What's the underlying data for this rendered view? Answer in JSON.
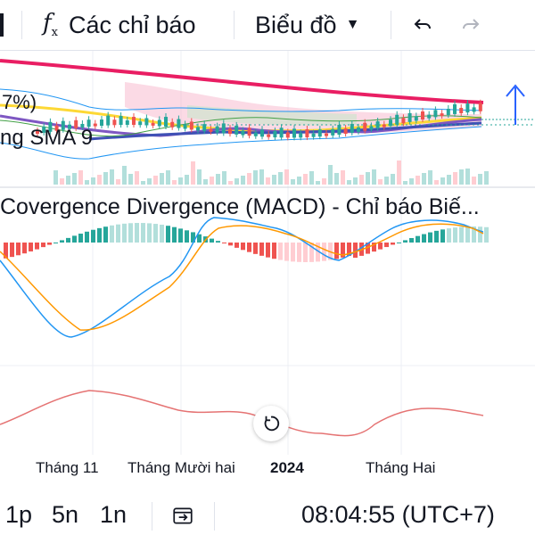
{
  "toolbar": {
    "indicators_label": "Các chỉ báo",
    "chart_label": "Biểu đồ",
    "indicators_icon": "function-icon",
    "chart_icon": "chevron-down-icon",
    "undo_icon": "undo-icon",
    "redo_icon": "redo-icon"
  },
  "panes": {
    "main_legend_fragment": "ng SMA 9",
    "percent_fragment": "7%)",
    "macd_title": "Covergence Divergence (MACD) - Chỉ báo Biế...",
    "reset_icon": "reset-icon"
  },
  "x_axis": {
    "labels": [
      "Tháng 11",
      "Tháng Mười hai",
      "2024",
      "Tháng Hai"
    ]
  },
  "bottom_bar": {
    "intervals": [
      "1p",
      "5n",
      "1n"
    ],
    "goto_icon": "goto-date-icon",
    "time": "08:04:55 (UTC+7)"
  },
  "colors": {
    "up": "#26a69a",
    "up_light": "#b2dfdb",
    "down": "#ef5350",
    "down_light": "#ffcdd2",
    "ma_long": "#e91e63",
    "macd_line": "#2196f3",
    "signal_line": "#ff9800",
    "rsi_line": "#e57373",
    "ichimoku_cloud": "#f8bbd0"
  }
}
